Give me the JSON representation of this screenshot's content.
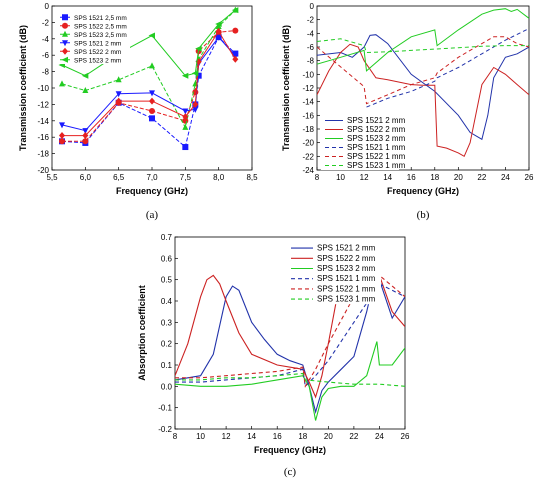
{
  "panel_labels": [
    "(a)",
    "(b)",
    "(c)"
  ],
  "chart_data": [
    {
      "type": "line",
      "panel": "a",
      "xlabel": "Frequency (GHz)",
      "ylabel": "Transmission coefficient (dB)",
      "xlim": [
        5.5,
        8.5
      ],
      "ylim": [
        -20,
        0
      ],
      "xticks": [
        "5,5",
        "6,0",
        "6,5",
        "7,0",
        "7,5",
        "8,0",
        "8,5"
      ],
      "yticks": [
        "0",
        "-2",
        "-4",
        "-6",
        "-8",
        "-10",
        "-12",
        "-14",
        "-16",
        "-18",
        "-20"
      ],
      "grid": false,
      "legend_position": "top-left",
      "series": [
        {
          "name": "SPS 1521 2,5 mm",
          "color": "#1a1aff",
          "dash": "4,2",
          "marker": "square",
          "x": [
            5.65,
            6.0,
            6.5,
            7.0,
            7.5,
            7.65,
            7.7,
            8.0,
            8.25
          ],
          "y": [
            -16.5,
            -16.7,
            -11.8,
            -13.7,
            -17.2,
            -12.0,
            -8.5,
            -3.8,
            -5.8
          ]
        },
        {
          "name": "SPS 1522 2,5 mm",
          "color": "#e62020",
          "dash": "4,2",
          "marker": "circle",
          "x": [
            5.65,
            6.0,
            6.5,
            7.0,
            7.5,
            7.65,
            7.7,
            8.0,
            8.25
          ],
          "y": [
            -16.5,
            -16.5,
            -11.8,
            -12.8,
            -14.0,
            -10.5,
            -5.5,
            -3.2,
            -3.0
          ]
        },
        {
          "name": "SPS 1523 2,5 mm",
          "color": "#22cc22",
          "dash": "4,2",
          "marker": "triangle-up",
          "x": [
            5.65,
            6.0,
            6.5,
            7.0,
            7.5,
            7.65,
            7.7,
            8.0,
            8.25
          ],
          "y": [
            -9.5,
            -10.3,
            -9.0,
            -7.3,
            -14.8,
            -9.5,
            -6.5,
            -2.5,
            -0.5
          ]
        },
        {
          "name": "SPS 1521 2 mm",
          "color": "#1a1aff",
          "dash": "",
          "marker": "triangle-down",
          "x": [
            5.65,
            6.0,
            6.5,
            7.0,
            7.5,
            7.65,
            7.7,
            8.0,
            8.25
          ],
          "y": [
            -14.5,
            -15.2,
            -10.7,
            -10.6,
            -12.8,
            -12.6,
            -7.0,
            -3.8,
            -6.1
          ]
        },
        {
          "name": "SPS 1522 2 mm",
          "color": "#e62020",
          "dash": "",
          "marker": "diamond",
          "x": [
            5.65,
            6.0,
            6.5,
            7.0,
            7.5,
            7.65,
            7.7,
            8.0,
            8.25
          ],
          "y": [
            -15.8,
            -15.8,
            -11.6,
            -11.6,
            -13.5,
            -12.0,
            -6.8,
            -3.1,
            -6.5
          ]
        },
        {
          "name": "SPS 1523 2 mm",
          "color": "#22cc22",
          "dash": "",
          "marker": "triangle-left",
          "x": [
            5.65,
            6.0,
            6.5,
            7.0,
            7.5,
            7.65,
            7.7,
            8.0,
            8.25
          ],
          "y": [
            -7.2,
            -8.5,
            -5.8,
            -3.6,
            -8.5,
            -8.2,
            -5.2,
            -2.2,
            -0.5
          ]
        }
      ]
    },
    {
      "type": "line",
      "panel": "b",
      "xlabel": "Frequency (GHz)",
      "ylabel": "Transmission coefficient (dB)",
      "xlim": [
        8,
        26
      ],
      "ylim": [
        -24,
        0
      ],
      "xticks": [
        "8",
        "10",
        "12",
        "14",
        "16",
        "18",
        "20",
        "22",
        "24",
        "26"
      ],
      "yticks": [
        "0",
        "-2",
        "-4",
        "-6",
        "-8",
        "-10",
        "-12",
        "-14",
        "-16",
        "-18",
        "-20",
        "-22",
        "-24"
      ],
      "grid": false,
      "legend_position": "bottom-left",
      "series": [
        {
          "name": "SPS 1521 2 mm",
          "color": "#2233aa",
          "dash": "",
          "x": [
            8,
            10,
            11,
            12,
            12.5,
            13,
            14,
            16,
            18,
            20,
            21,
            22,
            22.5,
            23,
            24,
            25,
            26
          ],
          "y": [
            -7.2,
            -6.8,
            -7.5,
            -6.0,
            -4.3,
            -4.2,
            -5.5,
            -10.0,
            -12.5,
            -16.0,
            -18.5,
            -19.5,
            -16.0,
            -10.5,
            -7.5,
            -7.0,
            -6.0
          ]
        },
        {
          "name": "SPS 1522 2 mm",
          "color": "#cc2222",
          "dash": "",
          "x": [
            8,
            9,
            10,
            10.8,
            11.5,
            12,
            13,
            14,
            16,
            17,
            18,
            18.2,
            19,
            20,
            20.5,
            21,
            22,
            23,
            24,
            25,
            26
          ],
          "y": [
            -13.0,
            -9.5,
            -6.8,
            -5.6,
            -6.0,
            -8.0,
            -10.5,
            -10.8,
            -11.5,
            -11.6,
            -11.6,
            -20.5,
            -20.8,
            -21.5,
            -22.0,
            -20.0,
            -11.5,
            -9.0,
            -10.0,
            -11.5,
            -13.0
          ]
        },
        {
          "name": "SPS 1523 2 mm",
          "color": "#22cc22",
          "dash": "",
          "x": [
            8,
            10,
            12,
            12.2,
            14,
            16,
            18,
            18.2,
            20,
            22,
            23,
            24,
            24.5,
            25,
            26
          ],
          "y": [
            -8.5,
            -7.5,
            -6.5,
            -9.5,
            -6.8,
            -4.5,
            -3.5,
            -5.8,
            -3.5,
            -1.2,
            -0.6,
            -0.4,
            -0.8,
            -0.5,
            -1.8
          ]
        },
        {
          "name": "SPS 1521 1 mm",
          "color": "#2233aa",
          "dash": "4,3",
          "x": [
            12.2,
            14,
            16,
            18,
            18.2,
            20,
            22,
            24,
            26
          ],
          "y": [
            -14.8,
            -13.5,
            -12.5,
            -11.0,
            -10.5,
            -9.0,
            -7.0,
            -5.0,
            -3.3
          ]
        },
        {
          "name": "SPS 1522 1 mm",
          "color": "#cc2222",
          "dash": "4,3",
          "x": [
            8,
            12,
            12.2,
            14,
            16,
            18,
            18.2,
            20,
            22,
            23,
            24,
            25,
            26
          ],
          "y": [
            -6.0,
            -11.8,
            -14.3,
            -13.0,
            -11.5,
            -10.5,
            -9.8,
            -7.5,
            -5.5,
            -4.5,
            -4.5,
            -5.5,
            -6.0
          ]
        },
        {
          "name": "SPS 1523 1 mm",
          "color": "#22cc22",
          "dash": "4,3",
          "x": [
            8,
            10,
            12,
            12.2,
            14,
            16,
            18,
            20,
            22,
            24,
            26
          ],
          "y": [
            -5.2,
            -4.8,
            -5.8,
            -6.8,
            -6.7,
            -6.5,
            -6.3,
            -6.1,
            -5.9,
            -5.8,
            -5.8
          ]
        }
      ]
    },
    {
      "type": "line",
      "panel": "c",
      "xlabel": "Frequency (GHz)",
      "ylabel": "Absorption coefficient",
      "xlim": [
        8,
        26
      ],
      "ylim": [
        -0.2,
        0.7
      ],
      "xticks": [
        "8",
        "10",
        "12",
        "14",
        "16",
        "18",
        "20",
        "22",
        "24",
        "26"
      ],
      "yticks": [
        "0.7",
        "0.6",
        "0.5",
        "0.4",
        "0.3",
        "0.2",
        "0.1",
        "0.0",
        "-0.1",
        "-0.2"
      ],
      "grid": false,
      "legend_position": "top-right",
      "series": [
        {
          "name": "SPS 1521 2 mm",
          "color": "#2233aa",
          "dash": "",
          "x": [
            8,
            10,
            11,
            12,
            12.5,
            13,
            14,
            15,
            16,
            17,
            18,
            18.5,
            19,
            19.5,
            20,
            21,
            22,
            23,
            23.5,
            24,
            25,
            26
          ],
          "y": [
            0.03,
            0.05,
            0.15,
            0.42,
            0.47,
            0.45,
            0.3,
            0.22,
            0.15,
            0.12,
            0.1,
            0.0,
            -0.12,
            -0.02,
            0.02,
            0.08,
            0.14,
            0.35,
            0.48,
            0.5,
            0.32,
            0.42
          ]
        },
        {
          "name": "SPS 1522 2 mm",
          "color": "#cc2222",
          "dash": "",
          "x": [
            8,
            9,
            10,
            10.5,
            11,
            11.5,
            12,
            13,
            14,
            16,
            18,
            18.5,
            19,
            19.5,
            20,
            21,
            21.5,
            22,
            23,
            24,
            25,
            26
          ],
          "y": [
            0.05,
            0.2,
            0.42,
            0.5,
            0.52,
            0.48,
            0.4,
            0.25,
            0.15,
            0.1,
            0.08,
            0.02,
            -0.05,
            0.05,
            0.2,
            0.52,
            0.58,
            0.56,
            0.55,
            0.52,
            0.35,
            0.28
          ]
        },
        {
          "name": "SPS 1523 2 mm",
          "color": "#22cc22",
          "dash": "",
          "x": [
            8,
            10,
            12,
            14,
            16,
            18,
            18.5,
            19,
            19.5,
            20,
            21,
            22,
            23,
            23.8,
            24,
            25,
            26
          ],
          "y": [
            0.01,
            0.0,
            0.0,
            0.01,
            0.03,
            0.05,
            0.0,
            -0.16,
            -0.05,
            -0.01,
            0.0,
            0.0,
            0.05,
            0.21,
            0.1,
            0.1,
            0.18
          ]
        },
        {
          "name": "SPS 1521 1 mm",
          "color": "#2233aa",
          "dash": "4,3",
          "x": [
            8,
            10,
            12,
            14,
            16,
            18,
            18.2,
            19,
            20,
            22,
            24,
            26
          ],
          "y": [
            0.02,
            0.02,
            0.03,
            0.04,
            0.05,
            0.08,
            0.0,
            0.05,
            0.12,
            0.3,
            0.48,
            0.42
          ]
        },
        {
          "name": "SPS 1522 1 mm",
          "color": "#cc2222",
          "dash": "4,3",
          "x": [
            8,
            10,
            12,
            14,
            16,
            18,
            18.2,
            19,
            20,
            22,
            23,
            24,
            25,
            26
          ],
          "y": [
            0.04,
            0.04,
            0.05,
            0.06,
            0.07,
            0.09,
            0.0,
            0.08,
            0.2,
            0.42,
            0.5,
            0.52,
            0.47,
            0.42
          ]
        },
        {
          "name": "SPS 1523 1 mm",
          "color": "#22cc22",
          "dash": "4,3",
          "x": [
            8,
            10,
            12,
            14,
            16,
            18,
            18.2,
            20,
            22,
            24,
            26
          ],
          "y": [
            0.03,
            0.03,
            0.04,
            0.04,
            0.05,
            0.06,
            0.03,
            0.02,
            0.01,
            0.01,
            0.0
          ]
        }
      ]
    }
  ]
}
